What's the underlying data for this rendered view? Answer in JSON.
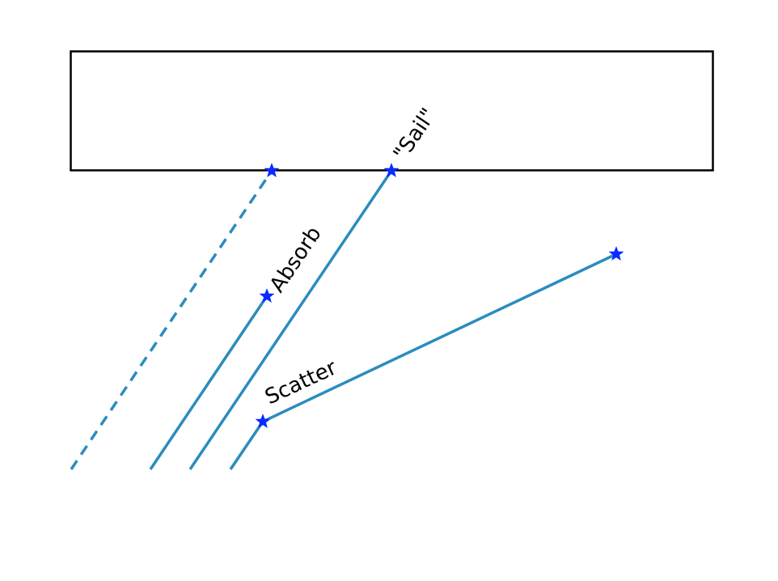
{
  "labels": {
    "sail": "\"Sail\"",
    "absorb": "Absorb",
    "scatter": "Scatter"
  },
  "colors": {
    "trajectory": "#2b8cbe",
    "marker": "#0a2bff",
    "box_outline": "#000000",
    "text": "#000000",
    "background": "#ffffff"
  },
  "icons": {
    "marker_shape": "star-icon"
  },
  "trajectories": [
    {
      "name": "unobstructed",
      "style": "dashed"
    },
    {
      "name": "absorb",
      "style": "solid"
    },
    {
      "name": "sail",
      "style": "solid"
    },
    {
      "name": "scatter",
      "style": "solid"
    }
  ]
}
